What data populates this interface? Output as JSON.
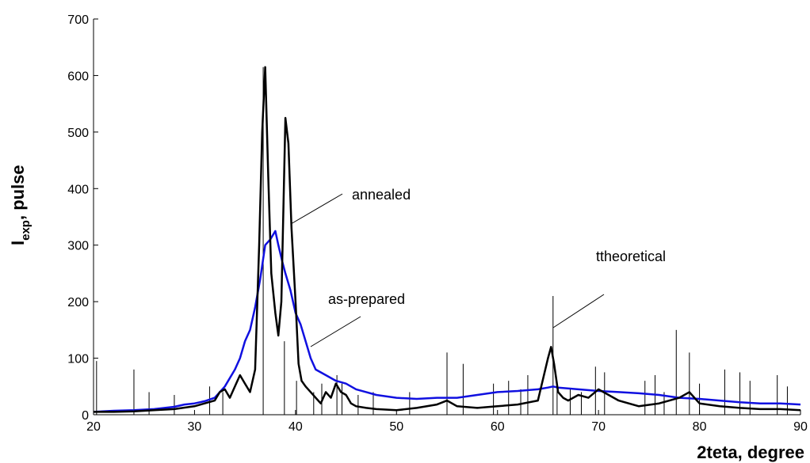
{
  "chart_data": {
    "type": "line",
    "title": "",
    "xlabel": "2teta, degree",
    "ylabel": {
      "main": "I",
      "sub": "exp",
      "rest": ", pulse"
    },
    "xlim": [
      20,
      90
    ],
    "ylim": [
      0,
      700
    ],
    "xticks": [
      20,
      30,
      40,
      50,
      60,
      70,
      80,
      90
    ],
    "yticks": [
      0,
      100,
      200,
      300,
      400,
      500,
      600,
      700
    ],
    "grid": false,
    "colors": {
      "as_prepared": "#1010e0",
      "annealed": "#000000",
      "theoretical": "#000000"
    },
    "series": [
      {
        "key": "as-prepared",
        "color": "#1010e0",
        "x": [
          20,
          22,
          24,
          26,
          28,
          29,
          30,
          31,
          32,
          33,
          34,
          34.5,
          35,
          35.5,
          36,
          36.5,
          37,
          37.5,
          38,
          38.3,
          38.7,
          39,
          39.5,
          40,
          40.5,
          41,
          41.5,
          42,
          43,
          44,
          45,
          46,
          47,
          48,
          50,
          52,
          54,
          56,
          58,
          60,
          62,
          64,
          65,
          65.5,
          66,
          68,
          70,
          72,
          74,
          76,
          78,
          80,
          82,
          84,
          86,
          88,
          90
        ],
        "y": [
          5,
          7,
          8,
          10,
          14,
          18,
          20,
          24,
          30,
          50,
          80,
          100,
          130,
          150,
          190,
          240,
          300,
          310,
          325,
          300,
          270,
          250,
          220,
          180,
          160,
          130,
          100,
          80,
          70,
          60,
          55,
          45,
          40,
          35,
          30,
          28,
          30,
          30,
          35,
          40,
          42,
          45,
          48,
          50,
          48,
          45,
          42,
          40,
          38,
          35,
          30,
          28,
          25,
          22,
          20,
          20,
          18
        ]
      },
      {
        "key": "annealed",
        "color": "#000000",
        "x": [
          20,
          22,
          24,
          26,
          28,
          30,
          31,
          32,
          32.5,
          33,
          33.5,
          34,
          34.5,
          35,
          35.5,
          36,
          36.4,
          36.7,
          37,
          37.3,
          37.6,
          38,
          38.3,
          38.6,
          39,
          39.3,
          39.6,
          40,
          40.3,
          40.6,
          41,
          41.5,
          42,
          42.5,
          43,
          43.5,
          44,
          44.5,
          45,
          45.5,
          46,
          47,
          48,
          50,
          52,
          54,
          55,
          56,
          58,
          60,
          62,
          64,
          65,
          65.3,
          65.6,
          66,
          66.5,
          67,
          68,
          69,
          70,
          71,
          72,
          74,
          76,
          78,
          79,
          80,
          82,
          84,
          86,
          88,
          90
        ],
        "y": [
          5,
          5,
          6,
          8,
          10,
          15,
          20,
          25,
          40,
          45,
          30,
          50,
          70,
          55,
          40,
          80,
          300,
          500,
          615,
          420,
          250,
          180,
          140,
          200,
          525,
          480,
          330,
          200,
          90,
          60,
          50,
          40,
          30,
          20,
          40,
          30,
          55,
          40,
          35,
          20,
          15,
          12,
          10,
          8,
          12,
          18,
          25,
          15,
          12,
          15,
          18,
          25,
          100,
          120,
          90,
          40,
          30,
          25,
          35,
          30,
          45,
          35,
          25,
          15,
          20,
          30,
          40,
          20,
          15,
          12,
          10,
          10,
          8
        ]
      },
      {
        "key": "theoretical",
        "type": "stick",
        "color": "#000000",
        "x": [
          20.3,
          24,
          25.5,
          28,
          31.5,
          32.8,
          36.8,
          38.9,
          40.1,
          41.8,
          42.6,
          44.1,
          44.6,
          46.2,
          47.7,
          51.3,
          55,
          56.6,
          59.6,
          61.1,
          62.3,
          63,
          65.5,
          65.9,
          67.2,
          68.3,
          69.7,
          70.6,
          74.6,
          75.6,
          76.5,
          77.7,
          79,
          80,
          82.5,
          84,
          85,
          87.7,
          88.7
        ],
        "y": [
          95,
          80,
          40,
          35,
          50,
          40,
          615,
          130,
          60,
          40,
          55,
          70,
          55,
          35,
          40,
          40,
          110,
          90,
          55,
          60,
          45,
          70,
          210,
          60,
          45,
          40,
          85,
          75,
          60,
          70,
          40,
          150,
          110,
          55,
          80,
          75,
          60,
          70,
          50
        ]
      }
    ],
    "annotations": [
      {
        "text": "annealed"
      },
      {
        "text": "as-prepared"
      },
      {
        "text": "ttheoretical"
      }
    ]
  }
}
